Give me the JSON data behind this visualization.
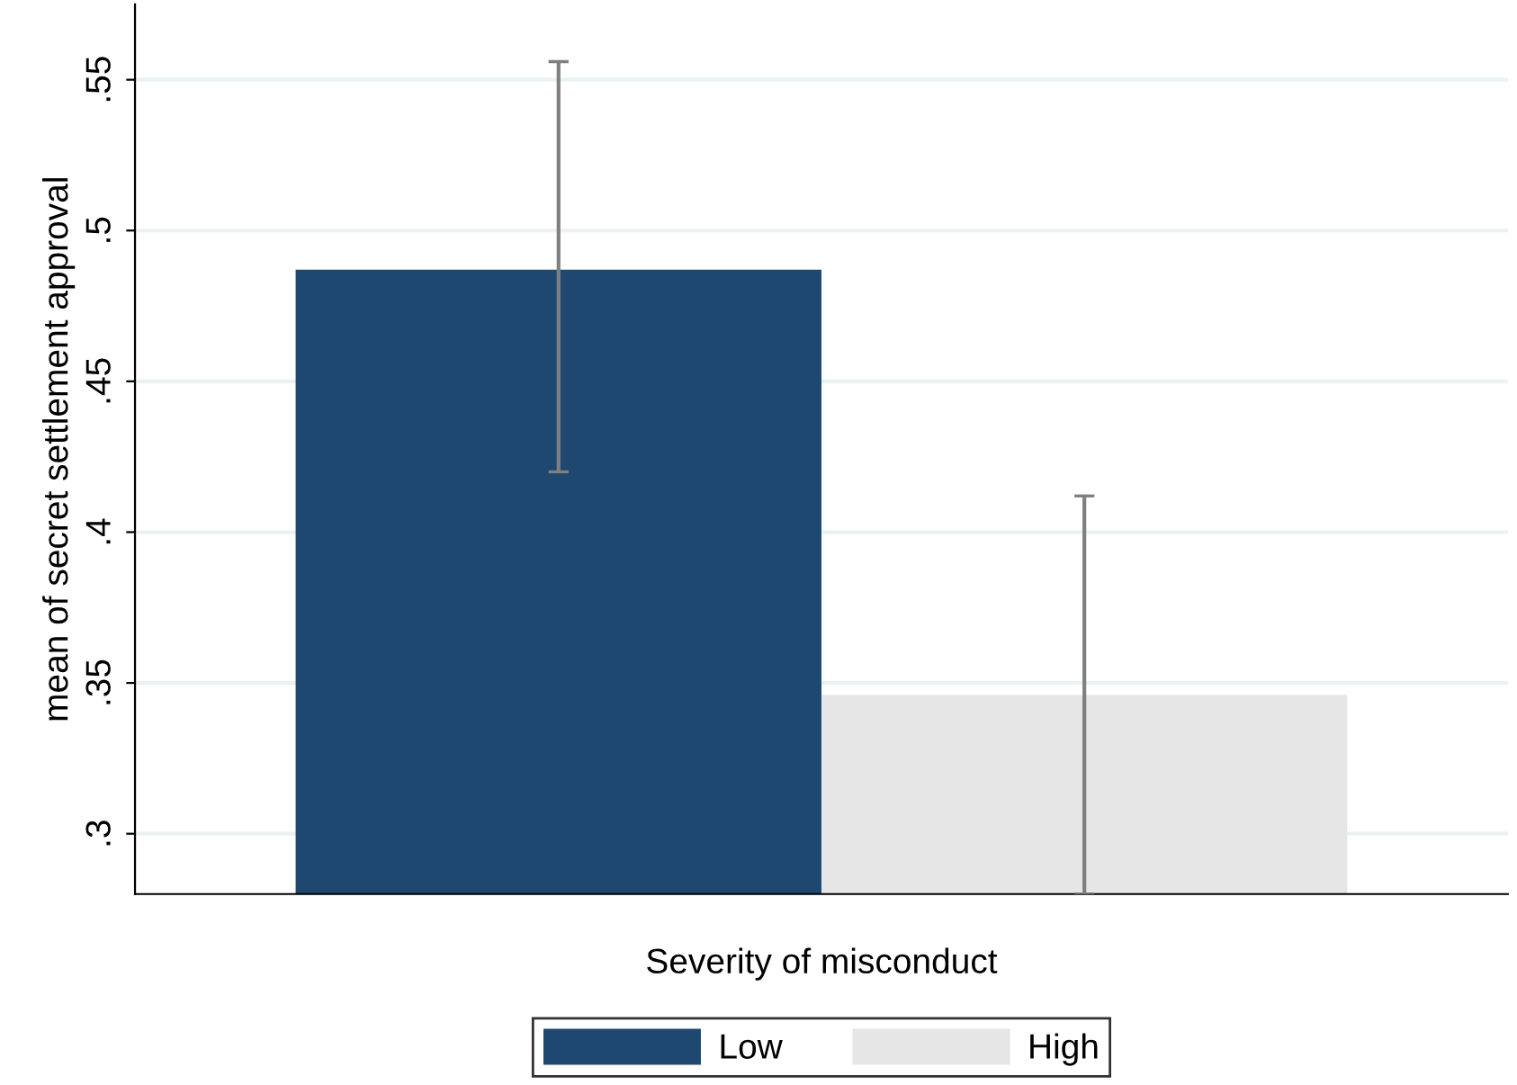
{
  "chart_data": {
    "type": "bar",
    "xlabel": "Severity of misconduct",
    "ylabel": "mean of secret settlement approval",
    "categories": [
      null
    ],
    "series": [
      {
        "name": "Low",
        "color": "#1f4870",
        "values": [
          0.487
        ],
        "errors": [
          [
            0.42,
            0.556
          ]
        ]
      },
      {
        "name": "High",
        "color": "#e6e6e6",
        "values": [
          0.346
        ],
        "errors": [
          [
            0.28,
            0.412
          ]
        ]
      }
    ],
    "ylim": [
      0.28,
      0.575
    ],
    "yticks": [
      {
        "value": 0.3,
        "label": ".3"
      },
      {
        "value": 0.35,
        "label": ".35"
      },
      {
        "value": 0.4,
        "label": ".4"
      },
      {
        "value": 0.45,
        "label": ".45"
      },
      {
        "value": 0.5,
        "label": ".5"
      },
      {
        "value": 0.55,
        "label": ".55"
      }
    ],
    "grid": "y",
    "legend": "bottom"
  }
}
